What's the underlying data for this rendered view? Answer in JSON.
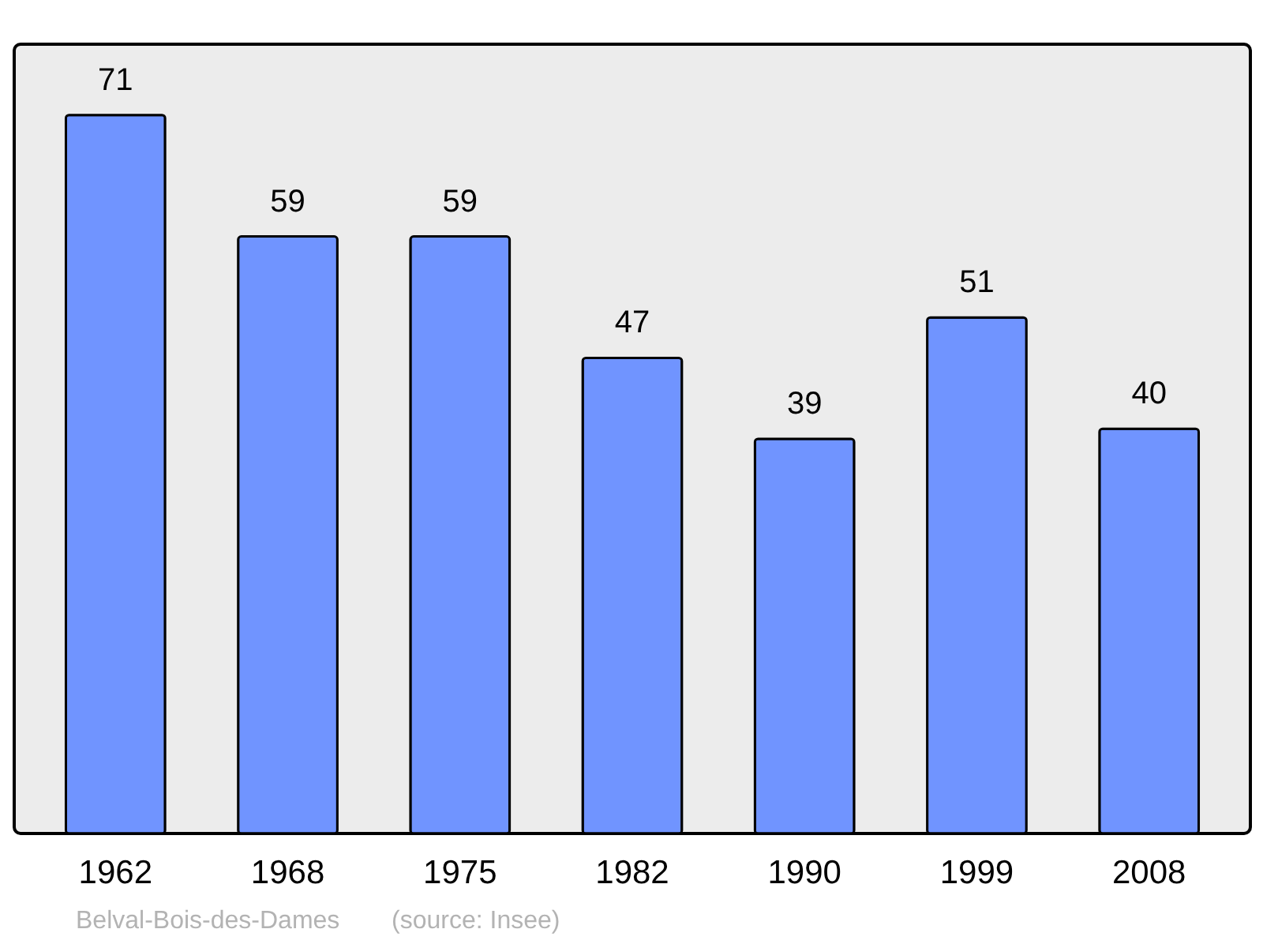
{
  "chart_data": {
    "type": "bar",
    "categories": [
      "1962",
      "1968",
      "1975",
      "1982",
      "1990",
      "1999",
      "2008"
    ],
    "values": [
      71,
      59,
      59,
      47,
      39,
      51,
      40
    ],
    "color": "#7094ff",
    "ylim": [
      0,
      78
    ],
    "tick_labels": "x",
    "data_labels": true,
    "annotations": [
      "Belval-Bois-des-Dames",
      "(source: Insee)"
    ]
  }
}
